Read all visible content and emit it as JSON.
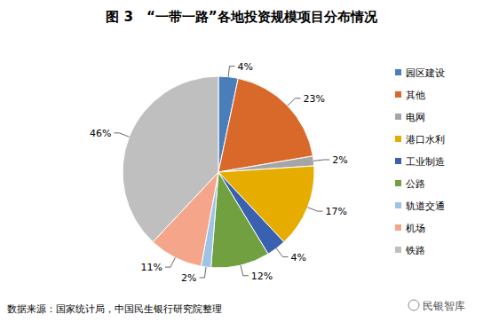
{
  "chart_data": {
    "type": "pie",
    "title": "图 3　“一带一路”各地投资规模项目分布情况",
    "categories": [
      "园区建设",
      "其他",
      "电网",
      "港口水利",
      "工业制造",
      "公路",
      "轨道交通",
      "机场",
      "铁路"
    ],
    "values": [
      4,
      23,
      2,
      17,
      4,
      12,
      2,
      11,
      46
    ],
    "value_labels": [
      "4%",
      "23%",
      "2%",
      "17%",
      "4%",
      "12%",
      "2%",
      "11%",
      "46%"
    ],
    "colors": [
      "#4a7ebb",
      "#d9692a",
      "#a5a5a5",
      "#e6ac00",
      "#3a60b0",
      "#70a040",
      "#9dc3e6",
      "#f4a58a",
      "#bfbfbf"
    ],
    "data_labels": true,
    "legend": "right",
    "source": "数据来源：国家统计局，中国民生银行研究院整理",
    "watermark": "民银智库"
  }
}
